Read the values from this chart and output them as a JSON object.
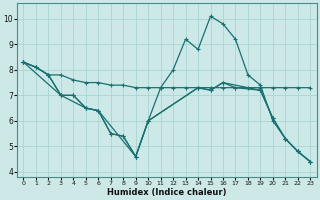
{
  "title": "",
  "xlabel": "Humidex (Indice chaleur)",
  "bg_color": "#cce9e8",
  "grid_color": "#aad4d2",
  "line_color": "#1a7070",
  "xlim": [
    -0.5,
    23.5
  ],
  "ylim": [
    3.8,
    10.6
  ],
  "xticks": [
    0,
    1,
    2,
    3,
    4,
    5,
    6,
    7,
    8,
    9,
    10,
    11,
    12,
    13,
    14,
    15,
    16,
    17,
    18,
    19,
    20,
    21,
    22,
    23
  ],
  "yticks": [
    4,
    5,
    6,
    7,
    8,
    9,
    10
  ],
  "series": [
    {
      "x": [
        0,
        1,
        2,
        3,
        4,
        5,
        6,
        7,
        8,
        9,
        10,
        11,
        12,
        13,
        14,
        15,
        16,
        17,
        18,
        19,
        20,
        21,
        22,
        23
      ],
      "y": [
        8.3,
        8.1,
        7.8,
        7.8,
        7.6,
        7.5,
        7.5,
        7.4,
        7.4,
        7.3,
        7.3,
        7.3,
        7.3,
        7.3,
        7.3,
        7.3,
        7.3,
        7.3,
        7.3,
        7.3,
        7.3,
        7.3,
        7.3,
        7.3
      ]
    },
    {
      "x": [
        0,
        1,
        2,
        3,
        4,
        5,
        6,
        7,
        8,
        9,
        10,
        11,
        12,
        13,
        14,
        15,
        16,
        17,
        18,
        19,
        20,
        21,
        22,
        23
      ],
      "y": [
        8.3,
        8.1,
        7.8,
        7.0,
        7.0,
        6.5,
        6.4,
        5.5,
        5.4,
        4.6,
        6.0,
        7.3,
        8.0,
        9.2,
        8.8,
        10.1,
        9.8,
        9.2,
        7.8,
        7.4,
        6.0,
        5.3,
        4.8,
        4.4
      ]
    },
    {
      "x": [
        0,
        1,
        2,
        3,
        4,
        5,
        6,
        9,
        10,
        14,
        15,
        16,
        19,
        20,
        21,
        22,
        23
      ],
      "y": [
        8.3,
        8.1,
        7.8,
        7.0,
        7.0,
        6.5,
        6.4,
        4.6,
        6.0,
        7.3,
        7.2,
        7.5,
        7.2,
        6.1,
        5.3,
        4.8,
        4.4
      ]
    },
    {
      "x": [
        0,
        3,
        5,
        6,
        7,
        8,
        9,
        10,
        14,
        15,
        16,
        17,
        19,
        20,
        21,
        22,
        23
      ],
      "y": [
        8.3,
        7.0,
        6.5,
        6.4,
        5.5,
        5.4,
        4.6,
        6.0,
        7.3,
        7.2,
        7.5,
        7.3,
        7.2,
        6.1,
        5.3,
        4.8,
        4.4
      ]
    }
  ]
}
